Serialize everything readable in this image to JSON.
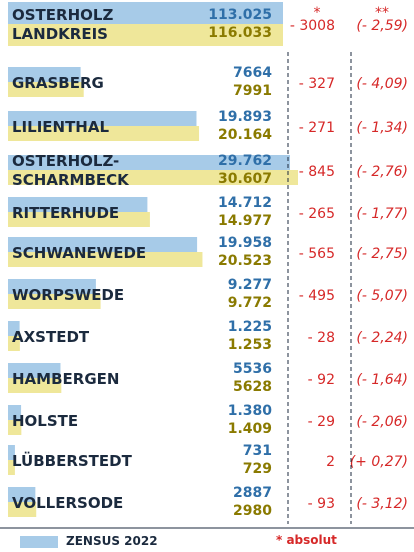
{
  "colors": {
    "zensus_bar": "#a7cbe8",
    "previous_bar": "#efe79a",
    "zensus_text": "#2f6fa8",
    "previous_text": "#8a7a00",
    "difference_text": "#d62828",
    "label_text": "#1b2a3e"
  },
  "header": {
    "col_absolute": "*",
    "col_percent": "**"
  },
  "legend": {
    "zensus_label": "ZENSUS 2022",
    "absolute_note": "* absolut"
  },
  "chart_data": {
    "type": "bar",
    "orientation": "horizontal",
    "series": [
      {
        "key": "zensus",
        "name": "ZENSUS 2022"
      },
      {
        "key": "previous",
        "name": ""
      }
    ],
    "rows": [
      {
        "name_lines": [
          "OSTERHOLZ",
          "LANDKREIS"
        ],
        "zensus": "113.025",
        "previous": "116.033",
        "zensus_value": 113025,
        "previous_value": 116033,
        "diff": "- 3008",
        "pct": "(- 2,59)",
        "total": true
      },
      {
        "name_lines": [
          "GRASBERG"
        ],
        "zensus": "7664",
        "previous": "7991",
        "zensus_value": 7664,
        "previous_value": 7991,
        "diff": "- 327",
        "pct": "(- 4,09)"
      },
      {
        "name_lines": [
          "LILIENTHAL"
        ],
        "zensus": "19.893",
        "previous": "20.164",
        "zensus_value": 19893,
        "previous_value": 20164,
        "diff": "- 271",
        "pct": "(- 1,34)"
      },
      {
        "name_lines": [
          "OSTERHOLZ-",
          "SCHARMBECK"
        ],
        "zensus": "29.762",
        "previous": "30.607",
        "zensus_value": 29762,
        "previous_value": 30607,
        "diff": "- 845",
        "pct": "(- 2,76)"
      },
      {
        "name_lines": [
          "RITTERHUDE"
        ],
        "zensus": "14.712",
        "previous": "14.977",
        "zensus_value": 14712,
        "previous_value": 14977,
        "diff": "- 265",
        "pct": "(- 1,77)"
      },
      {
        "name_lines": [
          "SCHWANEWEDE"
        ],
        "zensus": "19.958",
        "previous": "20.523",
        "zensus_value": 19958,
        "previous_value": 20523,
        "diff": "- 565",
        "pct": "(- 2,75)"
      },
      {
        "name_lines": [
          "WORPSWEDE"
        ],
        "zensus": "9.277",
        "previous": "9.772",
        "zensus_value": 9277,
        "previous_value": 9772,
        "diff": "- 495",
        "pct": "(- 5,07)"
      },
      {
        "name_lines": [
          "AXSTEDT"
        ],
        "zensus": "1.225",
        "previous": "1.253",
        "zensus_value": 1225,
        "previous_value": 1253,
        "diff": "- 28",
        "pct": "(- 2,24)"
      },
      {
        "name_lines": [
          "HAMBERGEN"
        ],
        "zensus": "5536",
        "previous": "5628",
        "zensus_value": 5536,
        "previous_value": 5628,
        "diff": "- 92",
        "pct": "(- 1,64)"
      },
      {
        "name_lines": [
          "HOLSTE"
        ],
        "zensus": "1.380",
        "previous": "1.409",
        "zensus_value": 1380,
        "previous_value": 1409,
        "diff": "- 29",
        "pct": "(- 2,06)"
      },
      {
        "name_lines": [
          "LÜBBERSTEDT"
        ],
        "zensus": "731",
        "previous": "729",
        "zensus_value": 731,
        "previous_value": 729,
        "diff": "2",
        "pct": "(+ 0,27)"
      },
      {
        "name_lines": [
          "VOLLERSODE"
        ],
        "zensus": "2887",
        "previous": "2980",
        "zensus_value": 2887,
        "previous_value": 2980,
        "diff": "- 93",
        "pct": "(- 3,12)"
      }
    ]
  }
}
